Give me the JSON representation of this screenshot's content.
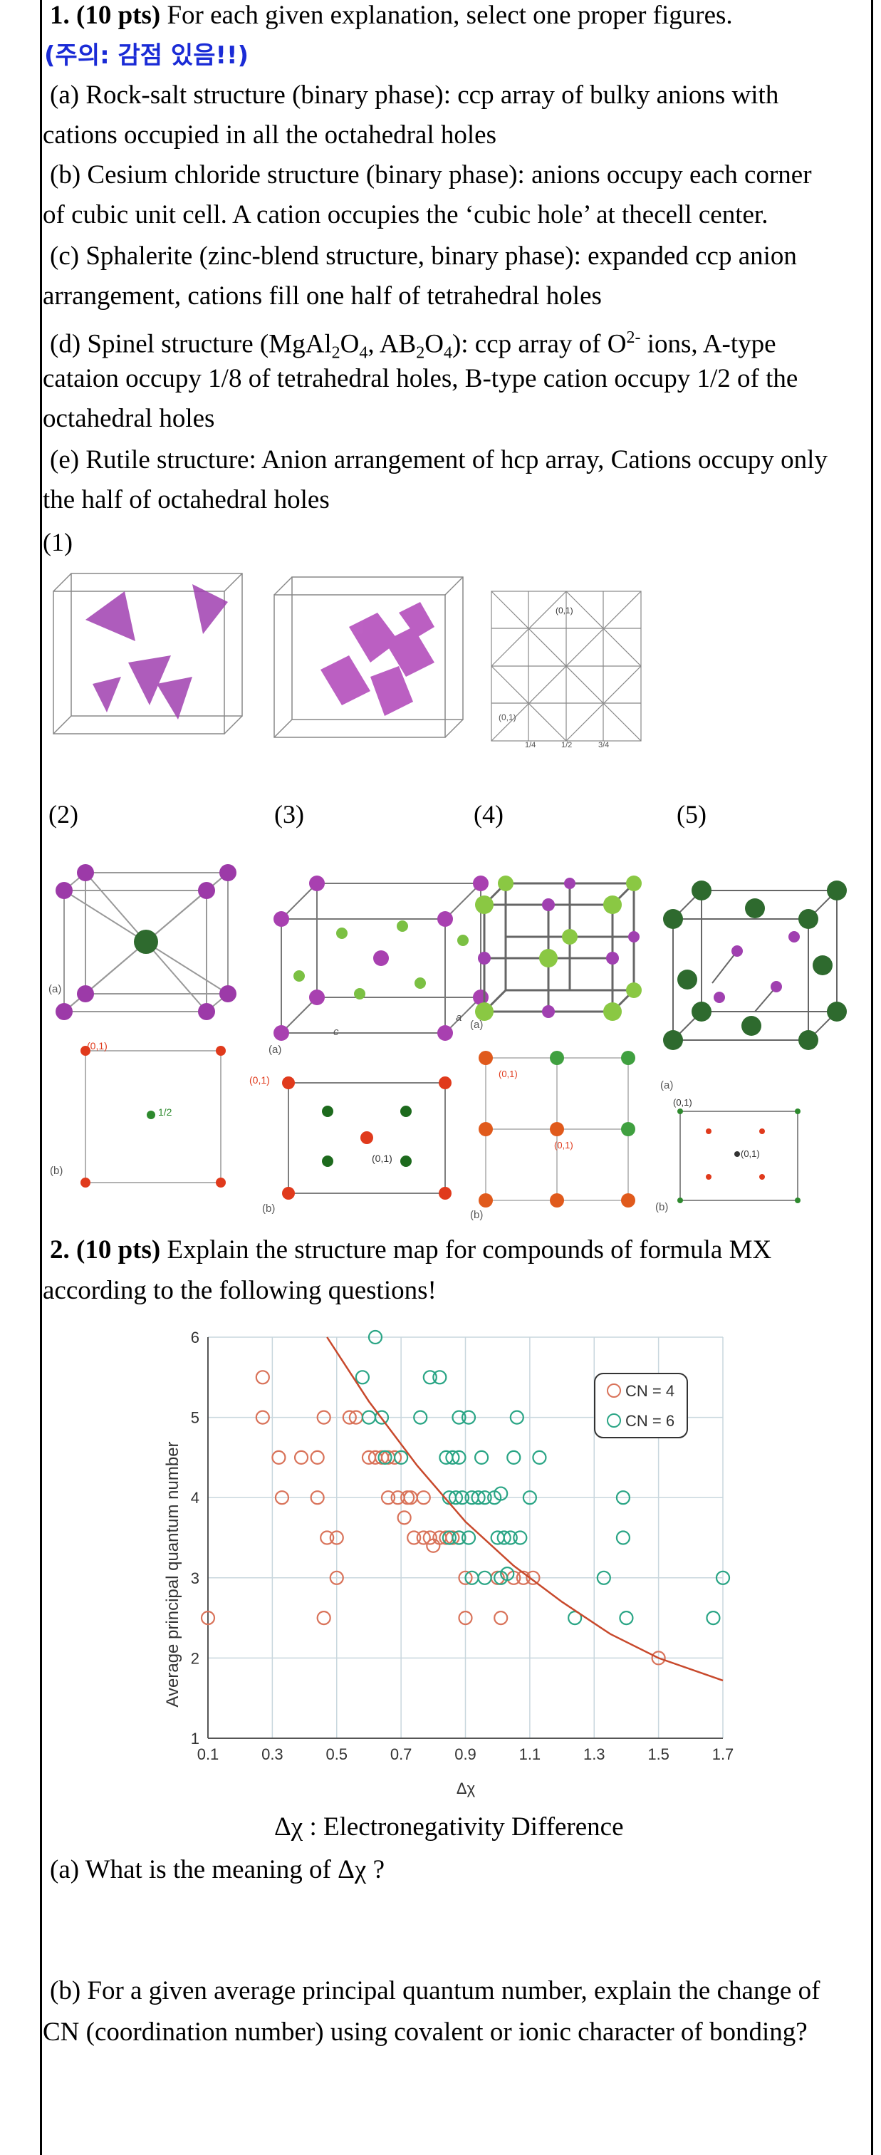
{
  "q1": {
    "heading_num": "1. (10 pts)",
    "heading_text": " For each given explanation, select one proper figures.",
    "warning": "(주의: 감점 있음!!)",
    "items": [
      {
        "line1": "(a) Rock-salt structure (binary phase): ccp array of bulky anions with",
        "line2": "cations occupied in all the octahedral holes"
      },
      {
        "line1": "(b) Cesium chloride structure (binary phase): anions occupy each corner",
        "line2": "of cubic unit cell. A cation occupies the ‘cubic hole’ at thecell center."
      },
      {
        "line1": "(c) Sphalerite (zinc-blend structure, binary phase): expanded ccp anion",
        "line2": "arrangement, cations fill one half of tetrahedral holes"
      },
      {
        "line1_a": "(d) Spinel structure (MgAl",
        "sub2a": "2",
        "o4a": "O",
        "sub4a": "4",
        "comma": ", AB",
        "sub2b": "2",
        "o4b": "O",
        "sub4b": "4",
        "rest": "): ccp array of O",
        "sup": "2-",
        "end": " ions, A-type",
        "line2": "cataion occupy 1/8 of tetrahedral holes, B-type cation occupy 1/2 of the",
        "line3": "octahedral holes"
      },
      {
        "line1": "(e) Rutile structure: Anion arrangement of hcp array, Cations occupy only",
        "line2": "the half of octahedral holes"
      }
    ],
    "fig_labels": [
      "(1)",
      "(2)",
      "(3)",
      "(4)",
      "(5)"
    ],
    "small_labels": {
      "a": "(a)",
      "b": "(b)",
      "c": "c",
      "aa": "a",
      "zero_one": "(0,1)",
      "half": "1/2",
      "quarter": "1/4",
      "three_quarter": "3/4"
    }
  },
  "q2": {
    "heading_num": "2. (10 pts)",
    "heading_text": " Explain the structure map for compounds of formula MX",
    "heading_line2": "according to the following questions!",
    "caption": "Δχ : Electronegativity Difference",
    "qa": "(a) What is the meaning of Δχ ?",
    "qb_line1": "(b) For a given average principal quantum number, explain the change of",
    "qb_line2": "CN (coordination number) using covalent or ionic character of bonding?"
  },
  "chart_data": {
    "type": "scatter",
    "xlabel": "Δχ",
    "ylabel": "Average principal quantum number",
    "xlim": [
      0.1,
      1.7
    ],
    "ylim": [
      1,
      6
    ],
    "xticks": [
      "0.1",
      "0.3",
      "0.5",
      "0.7",
      "0.9",
      "1.1",
      "1.3",
      "1.5",
      "1.7"
    ],
    "yticks": [
      "1",
      "2",
      "3",
      "4",
      "5",
      "6"
    ],
    "grid": true,
    "legend_position": "top-right",
    "series": [
      {
        "name": "CN = 4",
        "color": "#d9735a",
        "points": [
          [
            0.1,
            2.5
          ],
          [
            0.27,
            5.5
          ],
          [
            0.27,
            5
          ],
          [
            0.32,
            4.5
          ],
          [
            0.33,
            4
          ],
          [
            0.39,
            4.5
          ],
          [
            0.44,
            4.5
          ],
          [
            0.44,
            4
          ],
          [
            0.46,
            5
          ],
          [
            0.46,
            2.5
          ],
          [
            0.47,
            3.5
          ],
          [
            0.5,
            3.5
          ],
          [
            0.5,
            3
          ],
          [
            0.54,
            5
          ],
          [
            0.56,
            5
          ],
          [
            0.6,
            4.5
          ],
          [
            0.62,
            4.5
          ],
          [
            0.64,
            4.5
          ],
          [
            0.66,
            4.5
          ],
          [
            0.66,
            4
          ],
          [
            0.68,
            4.5
          ],
          [
            0.69,
            4
          ],
          [
            0.71,
            3.75
          ],
          [
            0.72,
            4
          ],
          [
            0.73,
            4
          ],
          [
            0.74,
            3.5
          ],
          [
            0.77,
            3.5
          ],
          [
            0.77,
            4
          ],
          [
            0.79,
            3.5
          ],
          [
            0.8,
            3.4
          ],
          [
            0.82,
            3.5
          ],
          [
            0.84,
            3.5
          ],
          [
            0.86,
            3.5
          ],
          [
            0.88,
            3.5
          ],
          [
            0.9,
            3
          ],
          [
            0.9,
            2.5
          ],
          [
            1.0,
            3
          ],
          [
            1.01,
            2.5
          ],
          [
            1.05,
            3
          ],
          [
            1.08,
            3
          ],
          [
            1.11,
            3
          ],
          [
            1.5,
            2
          ]
        ]
      },
      {
        "name": "CN = 6",
        "color": "#2aa585",
        "points": [
          [
            0.58,
            5.5
          ],
          [
            0.62,
            6
          ],
          [
            0.6,
            5
          ],
          [
            0.64,
            5
          ],
          [
            0.65,
            4.5
          ],
          [
            0.7,
            4.5
          ],
          [
            0.76,
            5
          ],
          [
            0.79,
            5.5
          ],
          [
            0.82,
            5.5
          ],
          [
            0.84,
            4.5
          ],
          [
            0.86,
            4.5
          ],
          [
            0.88,
            4.5
          ],
          [
            0.88,
            5
          ],
          [
            0.91,
            5
          ],
          [
            0.95,
            4.5
          ],
          [
            0.85,
            4
          ],
          [
            0.87,
            4
          ],
          [
            0.89,
            4
          ],
          [
            0.92,
            4
          ],
          [
            0.94,
            4
          ],
          [
            0.96,
            4
          ],
          [
            0.99,
            4
          ],
          [
            1.01,
            4.05
          ],
          [
            1.05,
            4.5
          ],
          [
            1.06,
            5
          ],
          [
            1.13,
            4.5
          ],
          [
            0.85,
            3.5
          ],
          [
            0.88,
            3.5
          ],
          [
            0.91,
            3.5
          ],
          [
            1.0,
            3.5
          ],
          [
            1.02,
            3.5
          ],
          [
            1.04,
            3.5
          ],
          [
            1.07,
            3.5
          ],
          [
            0.92,
            3
          ],
          [
            0.96,
            3
          ],
          [
            1.01,
            3
          ],
          [
            1.03,
            3.05
          ],
          [
            1.1,
            4
          ],
          [
            1.24,
            2.5
          ],
          [
            1.33,
            3
          ],
          [
            1.39,
            4
          ],
          [
            1.39,
            3.5
          ],
          [
            1.4,
            2.5
          ],
          [
            1.7,
            3
          ],
          [
            1.67,
            2.5
          ]
        ]
      }
    ],
    "curve": {
      "color": "#c8492c",
      "points": [
        [
          0.47,
          6
        ],
        [
          0.6,
          5.2
        ],
        [
          0.75,
          4.4
        ],
        [
          0.9,
          3.7
        ],
        [
          1.05,
          3.15
        ],
        [
          1.2,
          2.7
        ],
        [
          1.35,
          2.3
        ],
        [
          1.5,
          2.0
        ],
        [
          1.7,
          1.72
        ]
      ]
    }
  }
}
